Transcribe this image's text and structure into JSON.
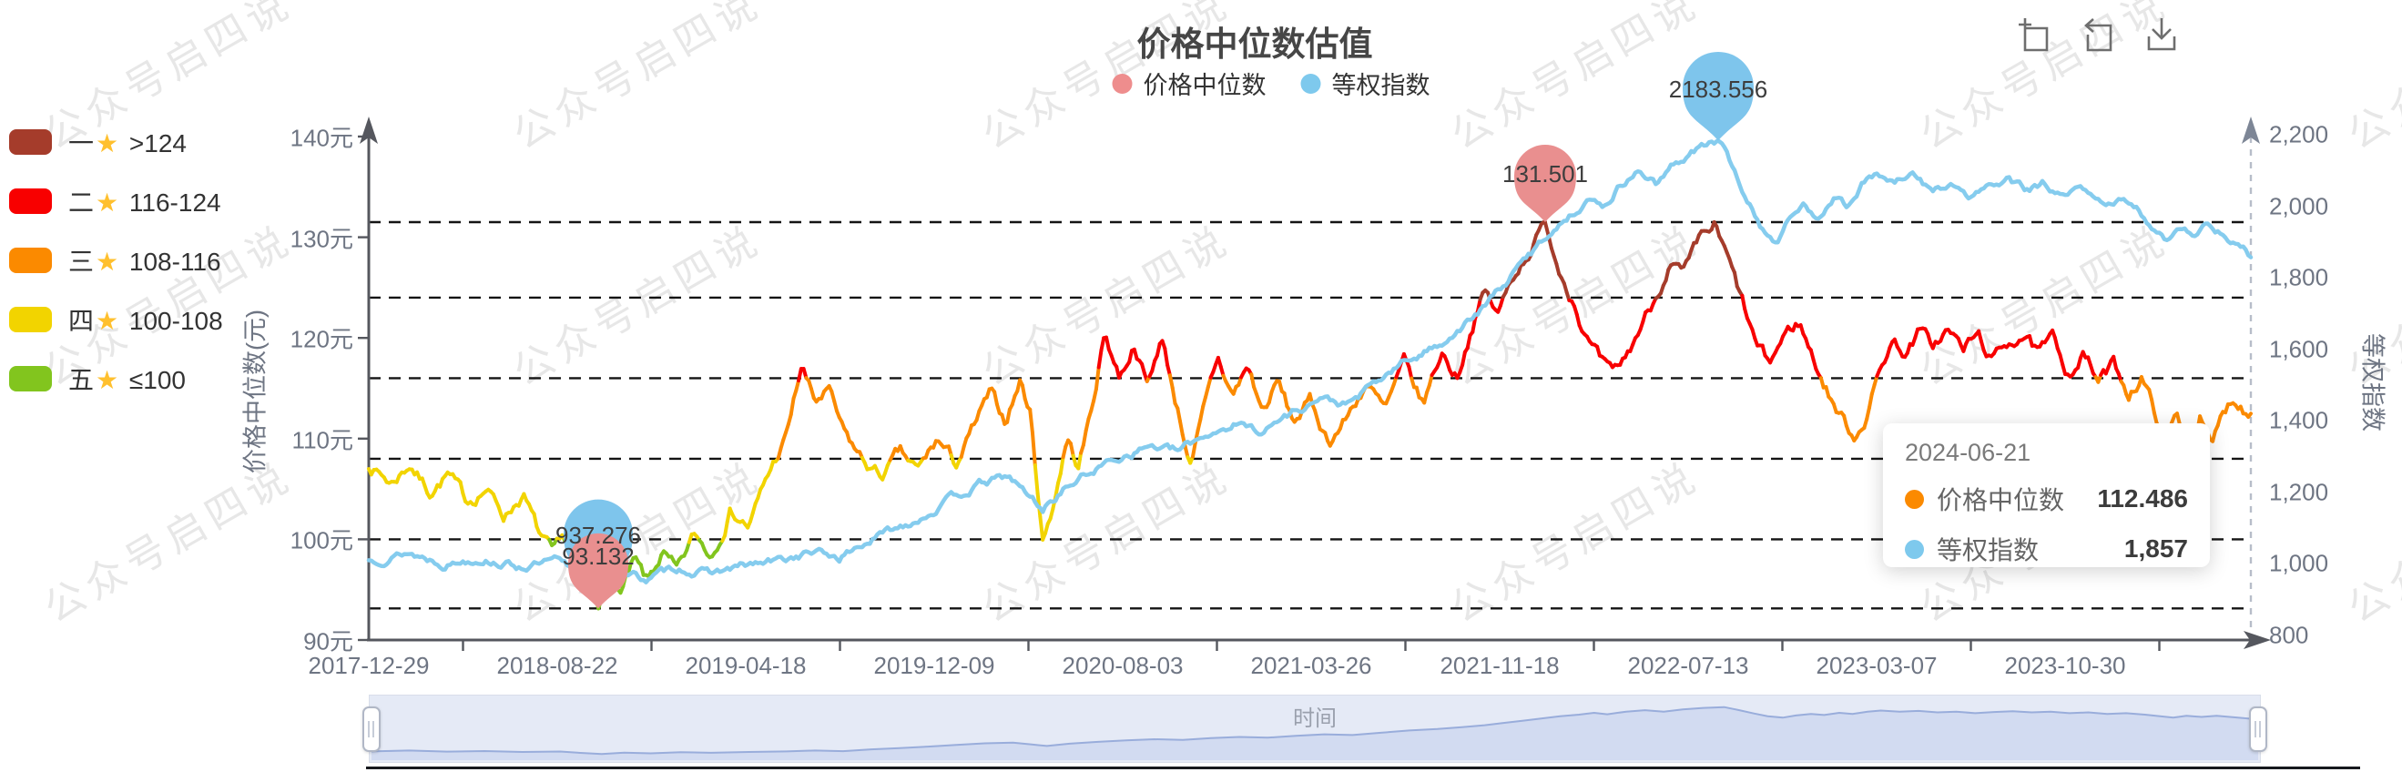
{
  "title": "价格中位数估值",
  "watermark_text": "公众号启四说",
  "top_legend": {
    "items": [
      {
        "label": "价格中位数",
        "color": "#ee8d8d"
      },
      {
        "label": "等权指数",
        "color": "#7ec9ed"
      }
    ]
  },
  "toolbox": {
    "icons": [
      "data-zoom-icon",
      "restore-icon",
      "save-image-icon"
    ]
  },
  "rating_legend": {
    "items": [
      {
        "num": "一",
        "star": "★",
        "range": ">124",
        "color": "#a53c2b"
      },
      {
        "num": "二",
        "star": "★",
        "range": "116-124",
        "color": "#f80000"
      },
      {
        "num": "三",
        "star": "★",
        "range": "108-116",
        "color": "#fb8a00"
      },
      {
        "num": "四",
        "star": "★",
        "range": "100-108",
        "color": "#f2d400"
      },
      {
        "num": "五",
        "star": "★",
        "range": "≤100",
        "color": "#82c51e"
      }
    ]
  },
  "y_axis_left": {
    "name": "价格中位数(元)",
    "tick_labels": [
      "140元",
      "130元",
      "120元",
      "110元",
      "100元",
      "90元"
    ],
    "min": 90,
    "max": 140
  },
  "y_axis_right": {
    "name": "等权指数",
    "tick_labels": [
      "2,200",
      "2,000",
      "1,800",
      "1,600",
      "1,400",
      "1,200",
      "1,000",
      "800"
    ],
    "min": 800,
    "max": 2200
  },
  "x_axis": {
    "tick_labels": [
      "2017-12-29",
      "2018-08-22",
      "2019-04-18",
      "2019-12-09",
      "2020-08-03",
      "2021-03-26",
      "2021-11-18",
      "2022-07-13",
      "2023-03-07",
      "2023-10-30"
    ]
  },
  "tooltip": {
    "date": "2024-06-21",
    "rows": [
      {
        "label": "价格中位数",
        "value": "112.486",
        "color": "#fb8a00"
      },
      {
        "label": "等权指数",
        "value": "1,857",
        "color": "#7ec9ed"
      }
    ]
  },
  "markers": {
    "median_max": {
      "value": "131.501",
      "color": "#e98f8f"
    },
    "median_min": {
      "value": "93.132",
      "color": "#e98f8f"
    },
    "index_max": {
      "value": "2183.556",
      "color": "#7ec5ec"
    },
    "index_min": {
      "value": "937.276",
      "color": "#7ec5ec"
    }
  },
  "slider": {
    "label": "时间"
  },
  "chart_data": {
    "type": "line",
    "title": "价格中位数估值",
    "x_range": [
      "2017-12-29",
      "2024-06-21"
    ],
    "x_tick_labels": [
      "2017-12-29",
      "2018-08-22",
      "2019-04-18",
      "2019-12-09",
      "2020-08-03",
      "2021-03-26",
      "2021-11-18",
      "2022-07-13",
      "2023-03-07",
      "2023-10-30"
    ],
    "left_ylim": [
      90,
      140
    ],
    "right_ylim": [
      800,
      2200
    ],
    "grid_dashed_levels_left": [
      131.501,
      124,
      116,
      108,
      100,
      93.132
    ],
    "band_colors": {
      "gt124": "#a53c2b",
      "116_124": "#f80000",
      "108_116": "#fb8a00",
      "100_108": "#f2d400",
      "le100": "#82c51e"
    },
    "index_line_color": "#85ccee",
    "series": [
      {
        "name": "价格中位数",
        "axis": "left",
        "unit": "元",
        "max": 131.501,
        "min": 93.132,
        "last_value": 112.486,
        "points": [
          [
            0,
            107.5
          ],
          [
            0.012,
            105.6
          ],
          [
            0.022,
            107.6
          ],
          [
            0.032,
            104.8
          ],
          [
            0.042,
            106.5
          ],
          [
            0.052,
            103.6
          ],
          [
            0.062,
            105.2
          ],
          [
            0.072,
            102.4
          ],
          [
            0.082,
            104.6
          ],
          [
            0.09,
            100.6
          ],
          [
            0.098,
            98.2
          ],
          [
            0.106,
            99.8
          ],
          [
            0.113,
            95.8
          ],
          [
            0.122,
            93.132
          ],
          [
            0.128,
            96.6
          ],
          [
            0.134,
            94.6
          ],
          [
            0.141,
            97.6
          ],
          [
            0.148,
            95.4
          ],
          [
            0.156,
            98.6
          ],
          [
            0.164,
            96.4
          ],
          [
            0.173,
            100.2
          ],
          [
            0.182,
            98.4
          ],
          [
            0.192,
            103.2
          ],
          [
            0.202,
            101.4
          ],
          [
            0.212,
            106.2
          ],
          [
            0.222,
            110.2
          ],
          [
            0.23,
            117.2
          ],
          [
            0.237,
            113.4
          ],
          [
            0.244,
            114.8
          ],
          [
            0.252,
            110.4
          ],
          [
            0.262,
            107.8
          ],
          [
            0.272,
            106.2
          ],
          [
            0.282,
            108.4
          ],
          [
            0.292,
            106.6
          ],
          [
            0.302,
            109.8
          ],
          [
            0.312,
            107.4
          ],
          [
            0.322,
            111.2
          ],
          [
            0.33,
            114.2
          ],
          [
            0.338,
            111.6
          ],
          [
            0.346,
            115.8
          ],
          [
            0.352,
            112.2
          ],
          [
            0.358,
            99.8
          ],
          [
            0.364,
            103.8
          ],
          [
            0.371,
            110.2
          ],
          [
            0.377,
            107.2
          ],
          [
            0.384,
            112.8
          ],
          [
            0.391,
            120.6
          ],
          [
            0.399,
            116.2
          ],
          [
            0.407,
            119.6
          ],
          [
            0.414,
            115.2
          ],
          [
            0.421,
            120.2
          ],
          [
            0.429,
            113.6
          ],
          [
            0.437,
            107.4
          ],
          [
            0.444,
            112.8
          ],
          [
            0.451,
            117.8
          ],
          [
            0.459,
            114.2
          ],
          [
            0.467,
            117.2
          ],
          [
            0.475,
            112.6
          ],
          [
            0.483,
            115.6
          ],
          [
            0.491,
            111.6
          ],
          [
            0.5,
            113.6
          ],
          [
            0.51,
            109.8
          ],
          [
            0.52,
            112.2
          ],
          [
            0.53,
            115.6
          ],
          [
            0.54,
            112.6
          ],
          [
            0.55,
            117.2
          ],
          [
            0.56,
            113.2
          ],
          [
            0.57,
            118.6
          ],
          [
            0.578,
            116.2
          ],
          [
            0.586,
            121.2
          ],
          [
            0.593,
            124.6
          ],
          [
            0.6,
            122.2
          ],
          [
            0.608,
            126.2
          ],
          [
            0.616,
            128.6
          ],
          [
            0.625,
            131.501
          ],
          [
            0.632,
            127.2
          ],
          [
            0.64,
            124.2
          ],
          [
            0.647,
            120.2
          ],
          [
            0.654,
            117.6
          ],
          [
            0.661,
            115.8
          ],
          [
            0.669,
            118.2
          ],
          [
            0.677,
            121.6
          ],
          [
            0.684,
            124.2
          ],
          [
            0.691,
            127.6
          ],
          [
            0.699,
            126.2
          ],
          [
            0.707,
            129.2
          ],
          [
            0.715,
            130.9
          ],
          [
            0.722,
            127.6
          ],
          [
            0.73,
            123.2
          ],
          [
            0.737,
            119.2
          ],
          [
            0.744,
            117.2
          ],
          [
            0.752,
            120.2
          ],
          [
            0.76,
            121.6
          ],
          [
            0.767,
            118.2
          ],
          [
            0.774,
            115.2
          ],
          [
            0.781,
            112.6
          ],
          [
            0.789,
            110.2
          ],
          [
            0.795,
            112.2
          ],
          [
            0.802,
            116.2
          ],
          [
            0.809,
            119.8
          ],
          [
            0.817,
            118.6
          ],
          [
            0.824,
            120.6
          ],
          [
            0.831,
            119.2
          ],
          [
            0.839,
            120.8
          ],
          [
            0.847,
            118.8
          ],
          [
            0.855,
            120.2
          ],
          [
            0.863,
            117.6
          ],
          [
            0.871,
            119.6
          ],
          [
            0.879,
            120.6
          ],
          [
            0.887,
            118.2
          ],
          [
            0.895,
            119.6
          ],
          [
            0.903,
            116.6
          ],
          [
            0.911,
            118.6
          ],
          [
            0.919,
            115.6
          ],
          [
            0.927,
            117.2
          ],
          [
            0.935,
            114.6
          ],
          [
            0.942,
            116.2
          ],
          [
            0.949,
            112.6
          ],
          [
            0.955,
            110.2
          ],
          [
            0.961,
            112.2
          ],
          [
            0.967,
            109.2
          ],
          [
            0.973,
            112.4
          ],
          [
            0.979,
            108.9
          ],
          [
            0.985,
            112.2
          ],
          [
            0.991,
            114.2
          ],
          [
            1,
            112.486
          ]
        ]
      },
      {
        "name": "等权指数",
        "axis": "right",
        "max": 2183.556,
        "min": 937.276,
        "last_value": 1857,
        "points": [
          [
            0,
            1008
          ],
          [
            0.02,
            1032
          ],
          [
            0.04,
            1002
          ],
          [
            0.06,
            1018
          ],
          [
            0.08,
            992
          ],
          [
            0.1,
            1004
          ],
          [
            0.113,
            962
          ],
          [
            0.122,
            937.276
          ],
          [
            0.134,
            976
          ],
          [
            0.148,
            956
          ],
          [
            0.164,
            988
          ],
          [
            0.18,
            972
          ],
          [
            0.2,
            992
          ],
          [
            0.22,
            1008
          ],
          [
            0.235,
            1032
          ],
          [
            0.25,
            1016
          ],
          [
            0.265,
            1062
          ],
          [
            0.28,
            1098
          ],
          [
            0.295,
            1136
          ],
          [
            0.31,
            1182
          ],
          [
            0.325,
            1222
          ],
          [
            0.34,
            1242
          ],
          [
            0.35,
            1192
          ],
          [
            0.358,
            1152
          ],
          [
            0.37,
            1212
          ],
          [
            0.385,
            1262
          ],
          [
            0.4,
            1302
          ],
          [
            0.415,
            1332
          ],
          [
            0.43,
            1312
          ],
          [
            0.445,
            1362
          ],
          [
            0.46,
            1392
          ],
          [
            0.475,
            1372
          ],
          [
            0.49,
            1422
          ],
          [
            0.505,
            1462
          ],
          [
            0.52,
            1442
          ],
          [
            0.535,
            1502
          ],
          [
            0.55,
            1562
          ],
          [
            0.565,
            1602
          ],
          [
            0.578,
            1652
          ],
          [
            0.59,
            1702
          ],
          [
            0.6,
            1762
          ],
          [
            0.61,
            1822
          ],
          [
            0.62,
            1882
          ],
          [
            0.63,
            1942
          ],
          [
            0.64,
            1982
          ],
          [
            0.648,
            2032
          ],
          [
            0.655,
            1992
          ],
          [
            0.665,
            2062
          ],
          [
            0.675,
            2102
          ],
          [
            0.685,
            2062
          ],
          [
            0.695,
            2122
          ],
          [
            0.706,
            2162
          ],
          [
            0.717,
            2183.556
          ],
          [
            0.725,
            2102
          ],
          [
            0.733,
            2012
          ],
          [
            0.74,
            1942
          ],
          [
            0.748,
            1902
          ],
          [
            0.755,
            1962
          ],
          [
            0.763,
            2002
          ],
          [
            0.77,
            1972
          ],
          [
            0.778,
            2032
          ],
          [
            0.785,
            2002
          ],
          [
            0.793,
            2062
          ],
          [
            0.8,
            2092
          ],
          [
            0.81,
            2062
          ],
          [
            0.82,
            2082
          ],
          [
            0.83,
            2042
          ],
          [
            0.84,
            2062
          ],
          [
            0.85,
            2022
          ],
          [
            0.86,
            2052
          ],
          [
            0.87,
            2072
          ],
          [
            0.88,
            2042
          ],
          [
            0.89,
            2062
          ],
          [
            0.9,
            2022
          ],
          [
            0.91,
            2042
          ],
          [
            0.92,
            2002
          ],
          [
            0.93,
            2022
          ],
          [
            0.94,
            1982
          ],
          [
            0.948,
            1942
          ],
          [
            0.955,
            1906
          ],
          [
            0.962,
            1952
          ],
          [
            0.97,
            1922
          ],
          [
            0.978,
            1952
          ],
          [
            0.985,
            1922
          ],
          [
            0.992,
            1892
          ],
          [
            1,
            1857
          ]
        ]
      }
    ]
  }
}
